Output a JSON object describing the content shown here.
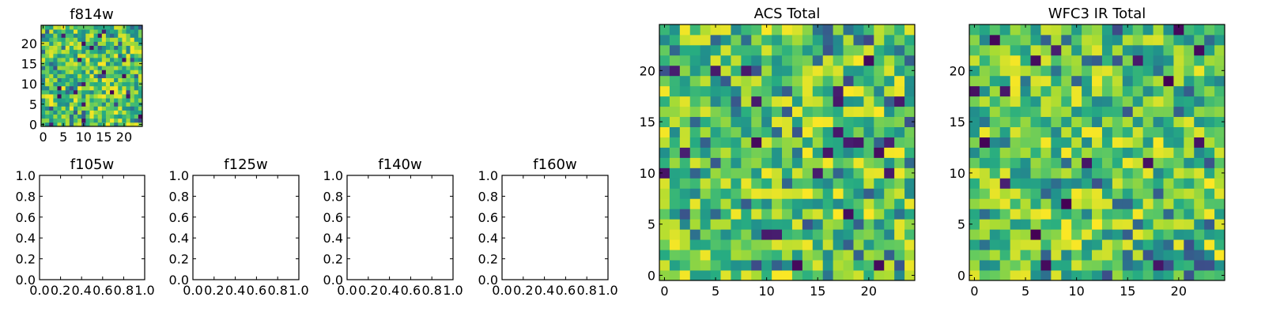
{
  "figure": {
    "background": "#ffffff",
    "colormap": "viridis",
    "colormap_stops": [
      "#440154",
      "#3b528b",
      "#21918c",
      "#5ec962",
      "#fde725"
    ]
  },
  "chart_data": [
    {
      "id": "f814w",
      "type": "heatmap",
      "title": "f814w",
      "grid_size": [
        25,
        25
      ],
      "xticks": [
        "0",
        "5",
        "10",
        "15",
        "20"
      ],
      "yticks": [
        "0",
        "5",
        "10",
        "15",
        "20"
      ],
      "xlim": [
        -0.5,
        24.5
      ],
      "ylim": [
        -0.5,
        24.5
      ],
      "value_range": [
        0,
        1
      ],
      "seed": 814,
      "grid": false
    },
    {
      "id": "f105w",
      "type": "scatter",
      "title": "f105w",
      "empty": true,
      "xticks": [
        "0.0",
        "0.2",
        "0.4",
        "0.6",
        "0.8",
        "1.0"
      ],
      "yticks": [
        "0.0",
        "0.2",
        "0.4",
        "0.6",
        "0.8",
        "1.0"
      ],
      "xlim": [
        0,
        1
      ],
      "ylim": [
        0,
        1
      ]
    },
    {
      "id": "f125w",
      "type": "scatter",
      "title": "f125w",
      "empty": true,
      "xticks": [
        "0.0",
        "0.2",
        "0.4",
        "0.6",
        "0.8",
        "1.0"
      ],
      "yticks": [
        "0.0",
        "0.2",
        "0.4",
        "0.6",
        "0.8",
        "1.0"
      ],
      "xlim": [
        0,
        1
      ],
      "ylim": [
        0,
        1
      ]
    },
    {
      "id": "f140w",
      "type": "scatter",
      "title": "f140w",
      "empty": true,
      "xticks": [
        "0.0",
        "0.2",
        "0.4",
        "0.6",
        "0.8",
        "1.0"
      ],
      "yticks": [
        "0.0",
        "0.2",
        "0.4",
        "0.6",
        "0.8",
        "1.0"
      ],
      "xlim": [
        0,
        1
      ],
      "ylim": [
        0,
        1
      ]
    },
    {
      "id": "f160w",
      "type": "scatter",
      "title": "f160w",
      "empty": true,
      "xticks": [
        "0.0",
        "0.2",
        "0.4",
        "0.6",
        "0.8",
        "1.0"
      ],
      "yticks": [
        "0.0",
        "0.2",
        "0.4",
        "0.6",
        "0.8",
        "1.0"
      ],
      "xlim": [
        0,
        1
      ],
      "ylim": [
        0,
        1
      ]
    },
    {
      "id": "acs-total",
      "type": "heatmap",
      "title": "ACS Total",
      "grid_size": [
        25,
        25
      ],
      "xticks": [
        "0",
        "5",
        "10",
        "15",
        "20"
      ],
      "yticks": [
        "0",
        "5",
        "10",
        "15",
        "20"
      ],
      "xlim": [
        -0.5,
        24.5
      ],
      "ylim": [
        -0.5,
        24.5
      ],
      "value_range": [
        0,
        1
      ],
      "seed": 2718,
      "grid": false
    },
    {
      "id": "wfc3-ir-total",
      "type": "heatmap",
      "title": "WFC3 IR Total",
      "grid_size": [
        25,
        25
      ],
      "xticks": [
        "0",
        "5",
        "10",
        "15",
        "20"
      ],
      "yticks": [
        "0",
        "5",
        "10",
        "15",
        "20"
      ],
      "xlim": [
        -0.5,
        24.5
      ],
      "ylim": [
        -0.5,
        24.5
      ],
      "value_range": [
        0,
        1
      ],
      "seed": 3141,
      "grid": false
    }
  ]
}
